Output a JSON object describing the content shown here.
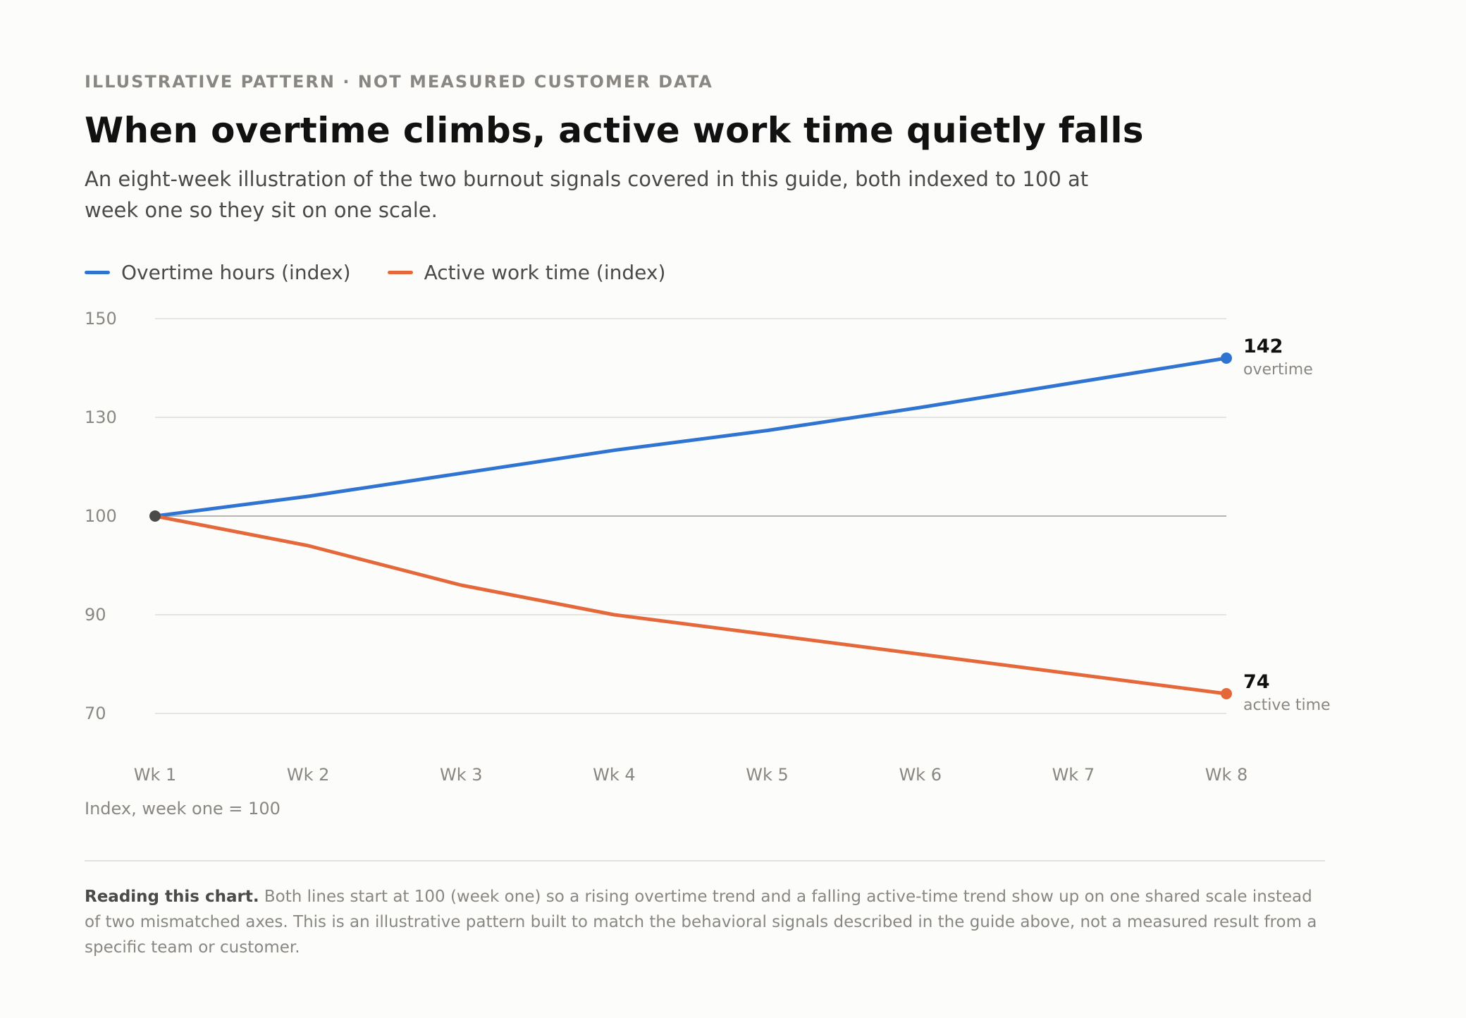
{
  "eyebrow": "ILLUSTRATIVE PATTERN · NOT MEASURED CUSTOMER DATA",
  "title": "When overtime climbs, active work time quietly falls",
  "subtitle": "An eight-week illustration of the two burnout signals covered in this guide, both indexed to 100 at week one so they sit on one scale.",
  "footnote": {
    "lead": "Reading this chart.",
    "text": " Both lines start at 100 (week one) so a rising overtime trend and a falling active-time trend show up on one shared scale instead of two mismatched axes. This is an illustrative pattern built to match the behavioral signals described in the guide above, not a measured result from a specific team or customer."
  },
  "colors": {
    "overtime": "#2f74d0",
    "active": "#e4683a",
    "start_point": "#4a4a48",
    "grid": "#dcdbd8",
    "baseline": "#b5b4b1",
    "tick_text": "#8a8782"
  },
  "chart_data": {
    "type": "line",
    "categories": [
      "Wk 1",
      "Wk 2",
      "Wk 3",
      "Wk 4",
      "Wk 5",
      "Wk 6",
      "Wk 7",
      "Wk 8"
    ],
    "series": [
      {
        "key": "overtime",
        "name": "Overtime hours (index)",
        "values": [
          100,
          106,
          113,
          120,
          126,
          132,
          137,
          142
        ],
        "end_value_label": "142",
        "end_caption": "overtime"
      },
      {
        "key": "active",
        "name": "Active work time (index)",
        "values": [
          100,
          97,
          93,
          90,
          86,
          82,
          78,
          74
        ],
        "end_value_label": "74",
        "end_caption": "active time"
      }
    ],
    "y_ticks": [
      {
        "value": 150,
        "label": "150"
      },
      {
        "value": 130,
        "label": "130"
      },
      {
        "value": 100,
        "label": "100"
      },
      {
        "value": 90,
        "label": "90"
      },
      {
        "value": 70,
        "label": "70"
      }
    ],
    "baseline_value": 100,
    "xlabel": "Index, week one = 100",
    "ylabel": "",
    "ylim": [
      70,
      150
    ],
    "grid": true,
    "legend": "top-left"
  }
}
